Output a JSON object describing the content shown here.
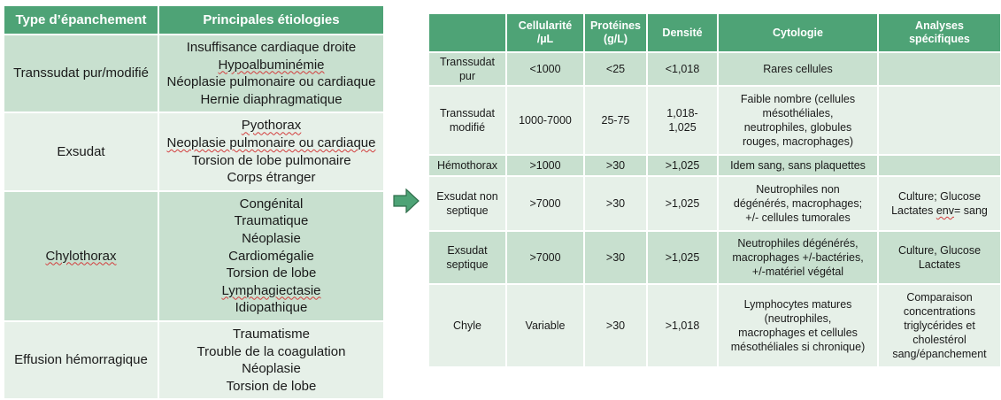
{
  "left_table": {
    "headers": [
      "Type d’épanchement",
      "Principales étiologies"
    ],
    "rows": [
      {
        "type": "Transsudat pur/modifié",
        "etiologies": [
          {
            "text": "Insuffisance cardiaque droite",
            "flagged": false
          },
          {
            "text": "Hypoalbuminémie",
            "flagged": true
          },
          {
            "text": "Néoplasie pulmonaire ou cardiaque",
            "flagged": false
          },
          {
            "text": "Hernie diaphragmatique",
            "flagged": false
          }
        ]
      },
      {
        "type": "Exsudat",
        "etiologies": [
          {
            "text": "Pyothorax",
            "flagged": true
          },
          {
            "text": "Neoplasie pulmonaire ou cardiaque",
            "flagged": true
          },
          {
            "text": "Torsion de lobe pulmonaire",
            "flagged": false
          },
          {
            "text": "Corps étranger",
            "flagged": false
          }
        ]
      },
      {
        "type": "Chylothorax",
        "type_flagged": true,
        "etiologies": [
          {
            "text": "Congénital",
            "flagged": false
          },
          {
            "text": "Traumatique",
            "flagged": false
          },
          {
            "text": "Néoplasie",
            "flagged": false
          },
          {
            "text": "Cardiomégalie",
            "flagged": false
          },
          {
            "text": "Torsion de lobe",
            "flagged": false
          },
          {
            "text": "Lymphagiectasie",
            "flagged": true
          },
          {
            "text": "Idiopathique",
            "flagged": false
          }
        ]
      },
      {
        "type": "Effusion hémorragique",
        "etiologies": [
          {
            "text": "Traumatisme",
            "flagged": false
          },
          {
            "text": "Trouble de la coagulation",
            "flagged": false
          },
          {
            "text": "Néoplasie",
            "flagged": false
          },
          {
            "text": "Torsion de lobe",
            "flagged": false
          }
        ]
      }
    ]
  },
  "arrow_icon": "right-arrow-icon",
  "right_table": {
    "headers": [
      {
        "label": [
          "Cellularité",
          "/µL"
        ]
      },
      {
        "label": [
          "Protéines",
          "(g/L)"
        ]
      },
      {
        "label": [
          "Densité"
        ]
      },
      {
        "label": [
          "Cytologie"
        ]
      },
      {
        "label": [
          "Analyses",
          "spécifiques"
        ]
      }
    ],
    "rows": [
      {
        "type": [
          "Transsudat",
          "pur"
        ],
        "cellularite": "<1000",
        "proteines": "<25",
        "densite": [
          "<1,018"
        ],
        "cytologie": [
          "Rares cellules"
        ],
        "analyses": []
      },
      {
        "type": [
          "Transsudat",
          "modifié"
        ],
        "cellularite": "1000-7000",
        "proteines": "25-75",
        "densite": [
          "1,018-",
          "1,025"
        ],
        "cytologie": [
          "Faible nombre (cellules",
          "mésothéliales,",
          "neutrophiles, globules",
          "rouges, macrophages)"
        ],
        "analyses": []
      },
      {
        "type": [
          "Hémothorax"
        ],
        "cellularite": ">1000",
        "proteines": ">30",
        "densite": [
          ">1,025"
        ],
        "cytologie": [
          "Idem sang, sans plaquettes"
        ],
        "analyses": []
      },
      {
        "type": [
          "Exsudat non",
          "septique"
        ],
        "cellularite": ">7000",
        "proteines": ">30",
        "densite": [
          ">1,025"
        ],
        "cytologie": [
          "Neutrophiles non",
          "dégénérés, macrophages;",
          "+/- cellules tumorales"
        ],
        "analyses": [
          "Culture; Glucose",
          "Lactates env= sang"
        ]
      },
      {
        "type": [
          "Exsudat",
          "septique"
        ],
        "cellularite": ">7000",
        "proteines": ">30",
        "densite": [
          ">1,025"
        ],
        "cytologie": [
          "Neutrophiles dégénérés,",
          "macrophages +/-bactéries,",
          "+/-matériel végétal"
        ],
        "analyses": [
          "Culture, Glucose",
          "Lactates"
        ]
      },
      {
        "type": [
          "Chyle"
        ],
        "cellularite": "Variable",
        "proteines": ">30",
        "densite": [
          ">1,018"
        ],
        "cytologie": [
          "Lymphocytes matures",
          "(neutrophiles,",
          "macrophages et cellules",
          "mésothéliales si chronique)"
        ],
        "analyses": [
          "Comparaison",
          "concentrations",
          "triglycérides et",
          "cholestérol",
          "sang/épanchement"
        ]
      }
    ]
  },
  "colors": {
    "header_green": "#4ea376",
    "row_dark": "#c8e0cf",
    "row_light": "#e6f0e8",
    "arrow_fill": "#4ea376",
    "arrow_stroke": "#2f6e4b"
  }
}
